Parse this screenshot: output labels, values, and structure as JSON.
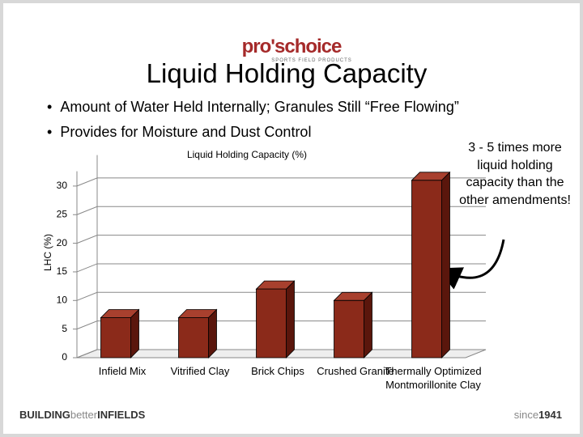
{
  "logo": {
    "name": "pro'schoice",
    "tagline": "SPORTS FIELD PRODUCTS"
  },
  "title": "Liquid Holding Capacity",
  "bullets": [
    "Amount of Water Held Internally; Granules Still “Free Flowing”",
    "Provides for Moisture and Dust Control"
  ],
  "annotation": "3 - 5 times more liquid holding capacity than the other amendments!",
  "chart_data": {
    "type": "bar3d",
    "title": "Liquid Holding Capacity (%)",
    "y_label": "LHC (%)",
    "categories": [
      "Infield Mix",
      "Vitrified Clay",
      "Brick Chips",
      "Crushed Granite",
      "Thermally Optimized Montmorillonite Clay"
    ],
    "values": [
      7,
      7,
      12,
      10,
      31
    ],
    "color": "#8b2a1a",
    "ylim": [
      0,
      34
    ],
    "yticks": [
      0,
      5,
      10,
      15,
      20,
      25,
      30
    ],
    "grid": true
  },
  "footer": {
    "left": [
      "BUILDING",
      "better",
      "INFIELDS"
    ],
    "right": [
      "since",
      "1941"
    ]
  }
}
